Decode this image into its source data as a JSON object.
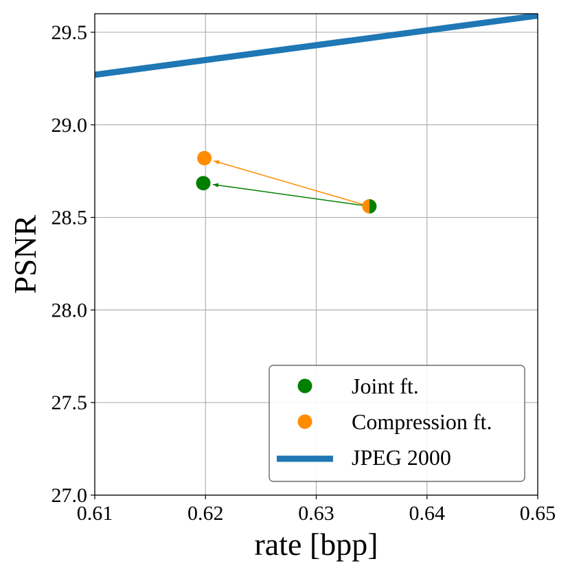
{
  "chart_data": {
    "type": "scatter",
    "xlabel": "rate [bpp]",
    "ylabel": "PSNR",
    "xlim": [
      0.61,
      0.65
    ],
    "ylim": [
      27.0,
      29.6
    ],
    "xticks": [
      0.61,
      0.62,
      0.63,
      0.64,
      0.65
    ],
    "xtick_labels": [
      "0.61",
      "0.62",
      "0.63",
      "0.64",
      "0.65"
    ],
    "yticks": [
      27.0,
      27.5,
      28.0,
      28.5,
      29.0,
      29.5
    ],
    "ytick_labels": [
      "27.0",
      "27.5",
      "28.0",
      "28.5",
      "29.0",
      "29.5"
    ],
    "grid": true,
    "legend_position": "bottom-right",
    "series": [
      {
        "name": "Joint ft.",
        "kind": "point",
        "color": "#008000",
        "start": {
          "x": 0.6348,
          "y": 28.56
        },
        "end": {
          "x": 0.6198,
          "y": 28.685
        }
      },
      {
        "name": "Compression ft.",
        "kind": "point",
        "color": "#ff8c00",
        "start": {
          "x": 0.6348,
          "y": 28.56
        },
        "end": {
          "x": 0.6199,
          "y": 28.82
        }
      },
      {
        "name": "JPEG 2000",
        "kind": "line",
        "color": "#1f77b4",
        "x": [
          0.61,
          0.65
        ],
        "y": [
          29.27,
          29.59
        ]
      }
    ]
  }
}
